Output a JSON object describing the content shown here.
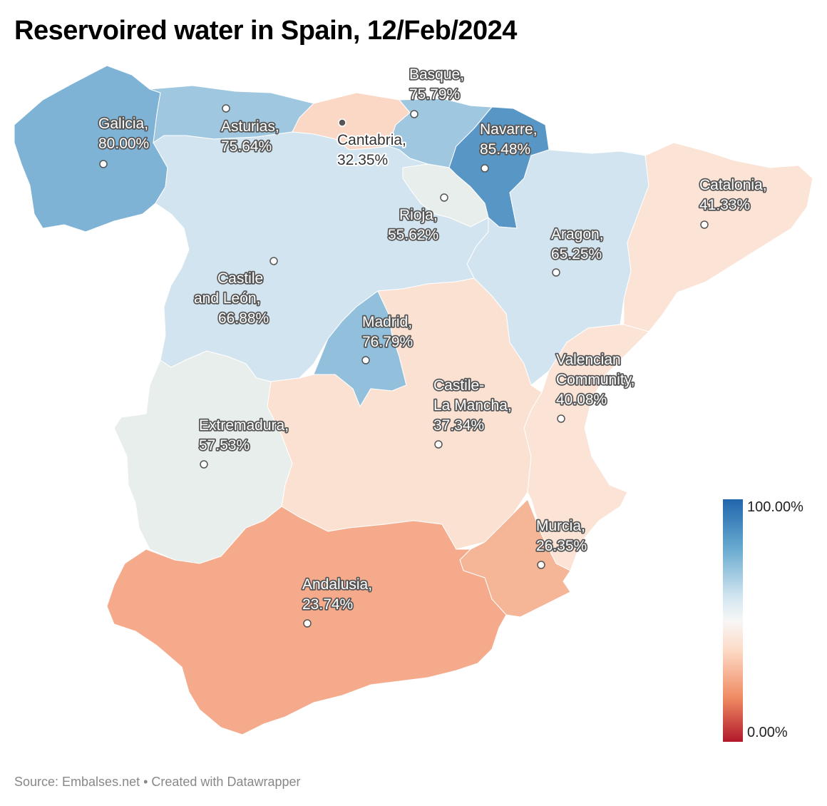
{
  "title": "Reservoired water in Spain, 12/Feb/2024",
  "legend": {
    "max_label": "100.00%",
    "min_label": "0.00%",
    "colors": [
      "#2166ac",
      "#67a9cf",
      "#d1e5f0",
      "#f7f7f7",
      "#fddbc7",
      "#ef8a62",
      "#b2182b"
    ]
  },
  "footer": {
    "source_text": "Source: Embalses.net • Created with Datawrapper"
  },
  "regions": [
    {
      "id": "galicia",
      "label_lines": [
        "Galicia,",
        "80.00%"
      ],
      "value": 80.0,
      "color": "#7eb3d6"
    },
    {
      "id": "asturias",
      "label_lines": [
        "Asturias,",
        "75.64%"
      ],
      "value": 75.64,
      "color": "#9fc8e0"
    },
    {
      "id": "cantabria",
      "label_lines": [
        "Cantabria,",
        "32.35%"
      ],
      "value": 32.35,
      "color": "#fbd8c5"
    },
    {
      "id": "basque",
      "label_lines": [
        "Basque,",
        "75.79%"
      ],
      "value": 75.79,
      "color": "#9fc8e0"
    },
    {
      "id": "navarre",
      "label_lines": [
        "Navarre,",
        "85.48%"
      ],
      "value": 85.48,
      "color": "#5896c6"
    },
    {
      "id": "rioja",
      "label_lines": [
        "Rioja,",
        "55.62%"
      ],
      "value": 55.62,
      "color": "#e8eeec"
    },
    {
      "id": "aragon",
      "label_lines": [
        "Aragon,",
        "65.25%"
      ],
      "value": 65.25,
      "color": "#d2e4ef"
    },
    {
      "id": "catalonia",
      "label_lines": [
        "Catalonia,",
        "41.33%"
      ],
      "value": 41.33,
      "color": "#fbe3d5"
    },
    {
      "id": "castile-leon",
      "label_lines": [
        "Castile",
        "and León,",
        "66.88%"
      ],
      "value": 66.88,
      "color": "#d2e4ef"
    },
    {
      "id": "madrid",
      "label_lines": [
        "Madrid,",
        "76.79%"
      ],
      "value": 76.79,
      "color": "#92c0dc"
    },
    {
      "id": "extremadura",
      "label_lines": [
        "Extremadura,",
        "57.53%"
      ],
      "value": 57.53,
      "color": "#e8eeec"
    },
    {
      "id": "castile-la-mancha",
      "label_lines": [
        "Castile-",
        "La Mancha,",
        "37.34%"
      ],
      "value": 37.34,
      "color": "#fbe1d2"
    },
    {
      "id": "valencian-community",
      "label_lines": [
        "Valencian",
        "Community,",
        "40.08%"
      ],
      "value": 40.08,
      "color": "#fbe3d5"
    },
    {
      "id": "murcia",
      "label_lines": [
        "Murcia,",
        "26.35%"
      ],
      "value": 26.35,
      "color": "#f5b597"
    },
    {
      "id": "andalusia",
      "label_lines": [
        "Andalusia,",
        "23.74%"
      ],
      "value": 23.74,
      "color": "#f5ab8b"
    }
  ]
}
